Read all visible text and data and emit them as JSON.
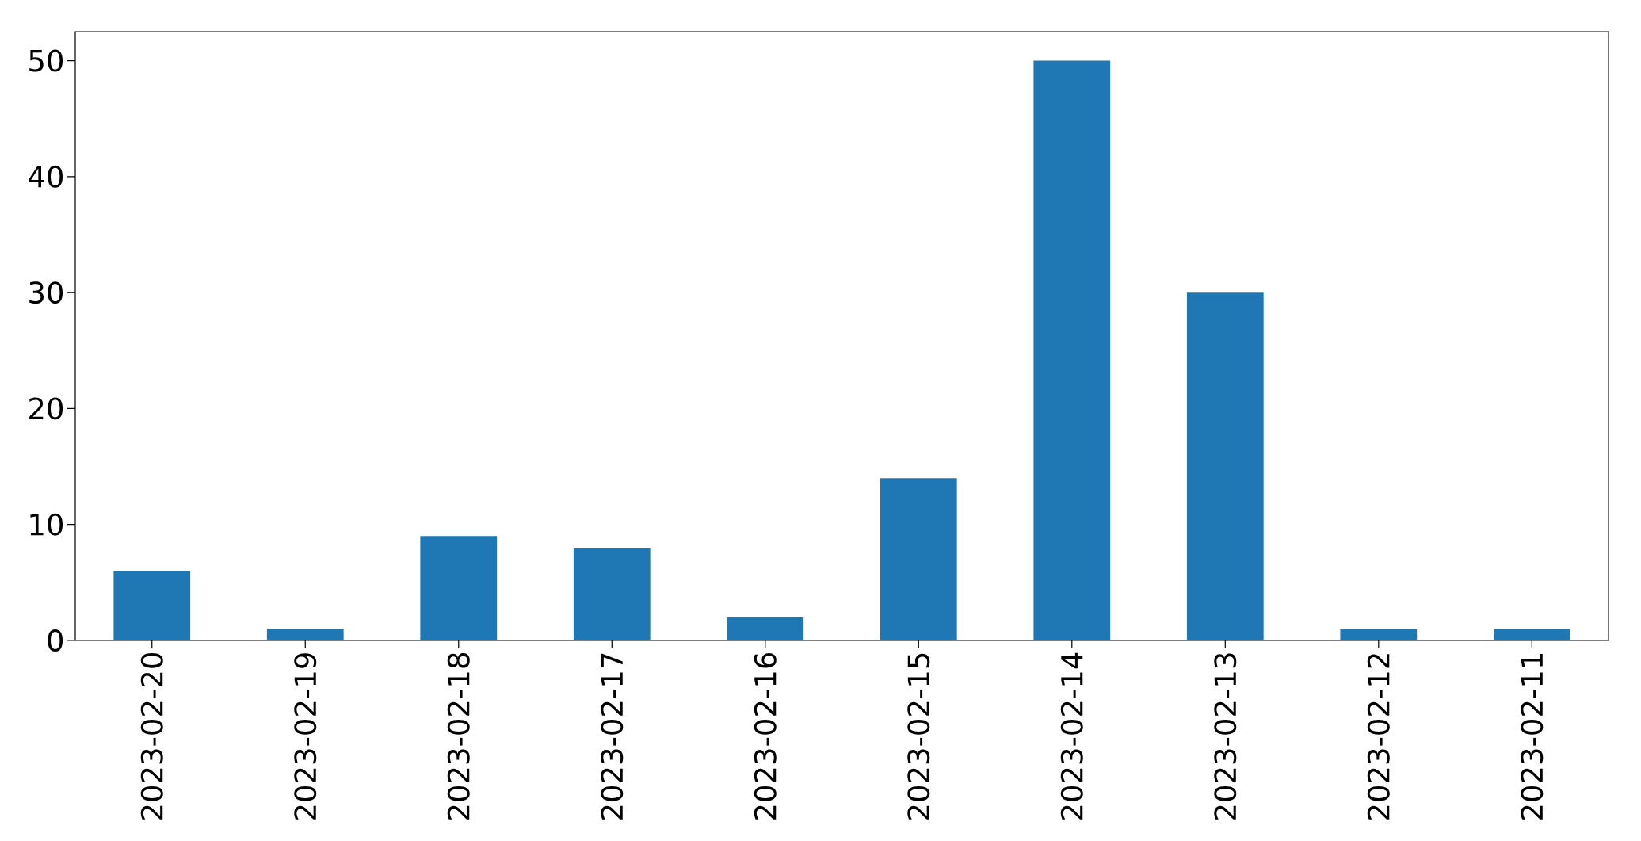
{
  "chart_data": {
    "type": "bar",
    "categories": [
      "2023-02-20",
      "2023-02-19",
      "2023-02-18",
      "2023-02-17",
      "2023-02-16",
      "2023-02-15",
      "2023-02-14",
      "2023-02-13",
      "2023-02-12",
      "2023-02-11"
    ],
    "values": [
      6,
      1,
      9,
      8,
      2,
      14,
      50,
      30,
      1,
      1
    ],
    "color": "#1f77b4",
    "ylim": [
      0,
      52.5
    ],
    "yticks": [
      0,
      10,
      20,
      30,
      40,
      50
    ]
  }
}
